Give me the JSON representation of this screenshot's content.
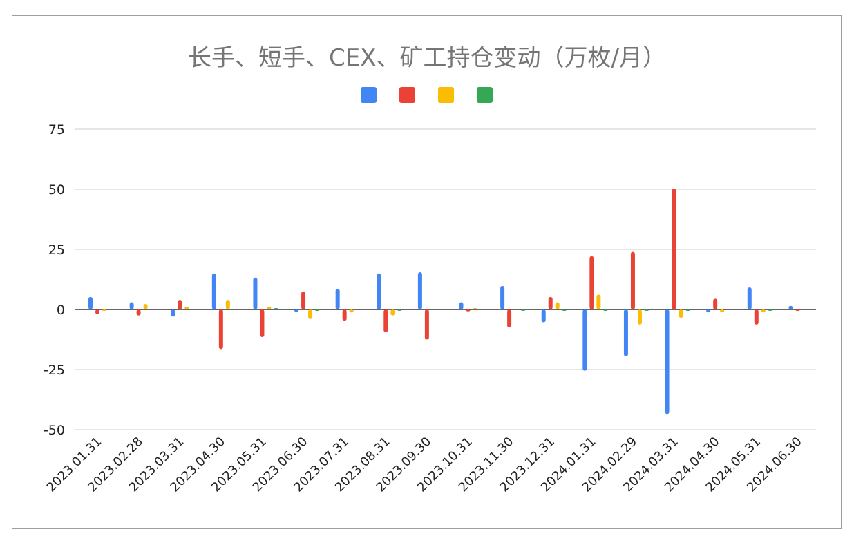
{
  "chart_data": {
    "type": "bar",
    "title": "长手、短手、CEX、矿工持仓变动（万枚/月）",
    "xlabel": "",
    "ylabel": "",
    "ylim": [
      -50,
      75
    ],
    "yticks": [
      "75",
      "50",
      "25",
      "0",
      "-25",
      "-50"
    ],
    "grid": true,
    "legend": "top",
    "categories": [
      "2023.01.31",
      "2023.02.28",
      "2023.03.31",
      "2023.04.30",
      "2023.05.31",
      "2023.06.30",
      "2023.07.31",
      "2023.08.31",
      "2023.09.30",
      "2023.10.31",
      "2023.11.30",
      "2023.12.31",
      "2024.01.31",
      "2024.02.29",
      "2024.03.31",
      "2024.04.30",
      "2024.05.31",
      "2024.06.30"
    ],
    "series": [
      {
        "color": "#4285f4",
        "values": [
          5.2,
          3,
          -3,
          15,
          13.3,
          -1,
          8.6,
          15,
          15.5,
          3,
          9.8,
          -5.3,
          -25.5,
          -19.5,
          -43.5,
          -1.2,
          9.2,
          1.5
        ]
      },
      {
        "color": "#ea4335",
        "values": [
          -2,
          -2.5,
          4,
          -16.5,
          -11.5,
          7.5,
          -4.7,
          -9.5,
          -12.5,
          -0.8,
          -7.5,
          5.2,
          22.2,
          24,
          50.2,
          4.5,
          -6.3,
          -0.3
        ]
      },
      {
        "color": "#fbbc04",
        "values": [
          -0.3,
          2.3,
          1.2,
          4,
          1.2,
          -4,
          -1.2,
          -2.5,
          0,
          0.6,
          0,
          3,
          6.2,
          -6.3,
          -3.5,
          -1.2,
          -1.2,
          0
        ]
      },
      {
        "color": "#34a853",
        "values": [
          0,
          0,
          0,
          0,
          0.6,
          -0.2,
          0,
          -0.3,
          0,
          0,
          -0.3,
          -0.2,
          -0.2,
          -0.2,
          -0.2,
          0,
          -0.2,
          0
        ]
      }
    ]
  }
}
